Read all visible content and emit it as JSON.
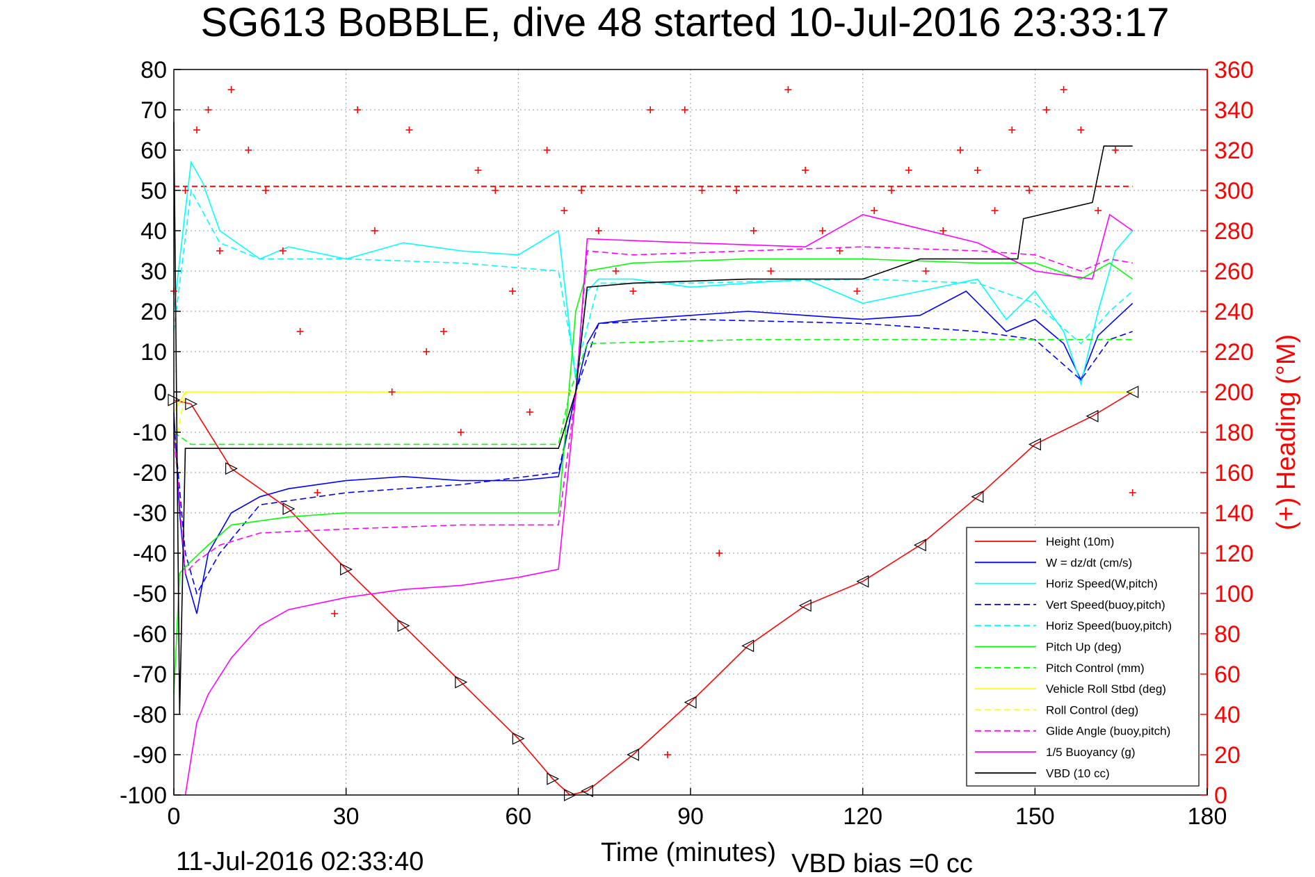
{
  "chart_data": {
    "type": "line",
    "title": "SG613 BoBBLE, dive 48 started 10-Jul-2016 23:33:17",
    "xlabel": "Time (minutes)",
    "ylabel": "",
    "y2label": "(+) Heading (°M)",
    "xlim": [
      0,
      180
    ],
    "ylim": [
      -100,
      80
    ],
    "y2lim": [
      0,
      360
    ],
    "x_ticks": [
      "0",
      "30",
      "60",
      "90",
      "120",
      "150",
      "180"
    ],
    "y_ticks": [
      "80",
      "70",
      "60",
      "50",
      "40",
      "30",
      "20",
      "10",
      "0",
      "-10",
      "-20",
      "-30",
      "-40",
      "-50",
      "-60",
      "-70",
      "-80",
      "-90",
      "-100"
    ],
    "y2_ticks": [
      "360",
      "340",
      "320",
      "300",
      "280",
      "260",
      "240",
      "220",
      "200",
      "180",
      "160",
      "140",
      "120",
      "100",
      "80",
      "60",
      "40",
      "20",
      "0"
    ],
    "grid": true,
    "legend_position": "bottom-right",
    "footer_left": "11-Jul-2016 02:33:40",
    "footer_right": "VBD bias =0 cc",
    "colors": {
      "height": "#ff0000",
      "w": "#0000ff",
      "horiz": "#00ffff",
      "pitch": "#00ff00",
      "roll": "#ffff00",
      "glide": "#ff00ff",
      "vbd": "#000000",
      "heading": "#ff0000"
    },
    "series": [
      {
        "name": "Height (10m)",
        "key": "height",
        "style": "solid",
        "x": [
          0,
          3,
          10,
          20,
          30,
          40,
          50,
          60,
          66,
          69,
          72,
          80,
          90,
          100,
          110,
          120,
          130,
          140,
          150,
          160,
          167
        ],
        "y": [
          -2,
          -3,
          -19,
          -29,
          -44,
          -58,
          -72,
          -86,
          -96,
          -100,
          -99,
          -90,
          -77,
          -63,
          -53,
          -47,
          -38,
          -26,
          -13,
          -6,
          0
        ]
      },
      {
        "name": "W = dz/dt (cm/s)",
        "key": "w",
        "style": "solid",
        "x": [
          0,
          1,
          2,
          4,
          6,
          10,
          15,
          20,
          30,
          40,
          50,
          60,
          67,
          70,
          72,
          74,
          80,
          90,
          100,
          110,
          120,
          130,
          138,
          145,
          150,
          155,
          158,
          161,
          164,
          167
        ],
        "y": [
          -5,
          -30,
          -45,
          -55,
          -40,
          -30,
          -26,
          -24,
          -22,
          -21,
          -22,
          -22,
          -21,
          0,
          12,
          17,
          18,
          19,
          20,
          19,
          18,
          19,
          25,
          15,
          18,
          12,
          3,
          14,
          18,
          22
        ]
      },
      {
        "name": "Horiz Speed(W,pitch)",
        "key": "horiz",
        "style": "solid",
        "x": [
          0,
          2,
          3,
          5,
          8,
          10,
          15,
          20,
          30,
          40,
          50,
          60,
          67,
          69,
          70,
          72,
          74,
          80,
          90,
          100,
          110,
          120,
          130,
          140,
          145,
          150,
          155,
          158,
          161,
          164,
          167
        ],
        "y": [
          20,
          45,
          57,
          52,
          40,
          38,
          33,
          36,
          33,
          37,
          35,
          34,
          40,
          15,
          3,
          25,
          28,
          28,
          26,
          27,
          28,
          22,
          25,
          28,
          18,
          25,
          15,
          2,
          20,
          35,
          40
        ]
      },
      {
        "name": "Vert Speed(buoy,pitch)",
        "key": "w",
        "style": "dashed",
        "x": [
          0,
          2,
          4,
          8,
          15,
          30,
          50,
          67,
          70,
          74,
          90,
          120,
          140,
          150,
          158,
          163,
          167
        ],
        "y": [
          -8,
          -40,
          -50,
          -40,
          -28,
          -25,
          -23,
          -20,
          0,
          17,
          18,
          17,
          15,
          13,
          3,
          13,
          15
        ]
      },
      {
        "name": "Horiz Speed(buoy,pitch)",
        "key": "horiz",
        "style": "dashed",
        "x": [
          0,
          3,
          8,
          15,
          30,
          50,
          67,
          70,
          74,
          90,
          120,
          140,
          150,
          158,
          163,
          167
        ],
        "y": [
          15,
          50,
          37,
          33,
          33,
          32,
          30,
          5,
          27,
          27,
          28,
          27,
          22,
          12,
          20,
          25
        ]
      },
      {
        "name": "Pitch Up (deg)",
        "key": "pitch",
        "style": "solid",
        "x": [
          0,
          1,
          3,
          6,
          10,
          20,
          30,
          50,
          67,
          70,
          72,
          80,
          100,
          120,
          140,
          150,
          158,
          163,
          167
        ],
        "y": [
          -75,
          -45,
          -42,
          -38,
          -33,
          -31,
          -30,
          -30,
          -30,
          20,
          30,
          32,
          33,
          33,
          32,
          32,
          28,
          32,
          28
        ]
      },
      {
        "name": "Pitch Control (mm)",
        "key": "pitch",
        "style": "dashed",
        "x": [
          0,
          2,
          3,
          67,
          69,
          72,
          100,
          167
        ],
        "y": [
          -10,
          -12,
          -13,
          -13,
          0,
          12,
          13,
          13
        ]
      },
      {
        "name": "Vehicle Roll Stbd (deg)",
        "key": "roll",
        "style": "solid",
        "x": [
          0,
          2,
          5,
          10,
          20,
          30,
          40,
          50,
          60,
          67,
          70,
          80,
          90,
          100,
          110,
          120,
          130,
          140,
          150,
          160,
          167
        ],
        "y": [
          -5,
          0,
          0,
          0,
          0,
          0,
          0,
          0,
          0,
          0,
          0,
          0,
          0,
          0,
          0,
          0,
          0,
          0,
          0,
          0,
          0
        ]
      },
      {
        "name": "Roll Control (deg)",
        "key": "roll",
        "style": "dashed",
        "x": [
          0,
          2,
          5,
          10,
          20,
          30,
          40,
          50,
          60,
          67,
          70,
          80,
          90,
          100,
          110,
          120,
          130,
          140,
          150,
          160,
          167
        ],
        "y": [
          -15,
          0,
          0,
          0,
          0,
          0,
          0,
          0,
          0,
          0,
          0,
          0,
          0,
          0,
          0,
          0,
          0,
          0,
          0,
          0,
          0
        ]
      },
      {
        "name": "Glide Angle (buoy,pitch)",
        "key": "glide",
        "style": "dashed",
        "x": [
          0,
          2,
          4,
          8,
          15,
          30,
          50,
          67,
          70,
          72,
          80,
          100,
          120,
          140,
          150,
          158,
          163,
          167
        ],
        "y": [
          -10,
          -45,
          -42,
          -38,
          -35,
          -34,
          -33,
          -33,
          0,
          35,
          34,
          35,
          36,
          35,
          34,
          30,
          33,
          32
        ]
      },
      {
        "name": "1/5 Buoyancy (g)",
        "key": "glide",
        "style": "solid",
        "x": [
          2,
          4,
          6,
          10,
          15,
          20,
          30,
          40,
          50,
          60,
          67,
          70,
          72,
          90,
          110,
          120,
          140,
          150,
          160,
          163,
          167
        ],
        "y": [
          -100,
          -82,
          -75,
          -66,
          -58,
          -54,
          -51,
          -49,
          -48,
          -46,
          -44,
          -1,
          38,
          37,
          36,
          44,
          37,
          30,
          28,
          44,
          40
        ]
      },
      {
        "name": "VBD (10 cc)",
        "key": "vbd",
        "style": "solid",
        "x": [
          0,
          1,
          2,
          3,
          67,
          70,
          72,
          80,
          100,
          120,
          130,
          147,
          148,
          160,
          162,
          167
        ],
        "y": [
          67,
          -80,
          -14,
          -14,
          -14,
          0,
          26,
          27,
          28,
          28,
          33,
          33,
          43,
          47,
          61,
          61
        ]
      }
    ],
    "heading_series": {
      "name": "(+) Heading",
      "x": [
        0,
        2,
        4,
        6,
        8,
        10,
        13,
        16,
        19,
        22,
        25,
        28,
        32,
        35,
        38,
        41,
        44,
        47,
        50,
        53,
        56,
        59,
        62,
        65,
        68,
        71,
        74,
        77,
        80,
        83,
        86,
        89,
        92,
        95,
        98,
        101,
        104,
        107,
        110,
        113,
        116,
        119,
        122,
        125,
        128,
        131,
        134,
        137,
        140,
        143,
        146,
        149,
        152,
        155,
        158,
        161,
        164,
        167
      ],
      "y": [
        250,
        300,
        330,
        340,
        270,
        350,
        320,
        300,
        270,
        230,
        150,
        90,
        340,
        280,
        200,
        330,
        220,
        230,
        180,
        310,
        300,
        250,
        190,
        320,
        290,
        300,
        280,
        260,
        250,
        340,
        20,
        340,
        300,
        120,
        300,
        280,
        260,
        350,
        310,
        280,
        270,
        250,
        290,
        300,
        310,
        260,
        280,
        320,
        310,
        290,
        330,
        300,
        340,
        350,
        330,
        290,
        320,
        150
      ]
    },
    "heading_reference": 302
  }
}
